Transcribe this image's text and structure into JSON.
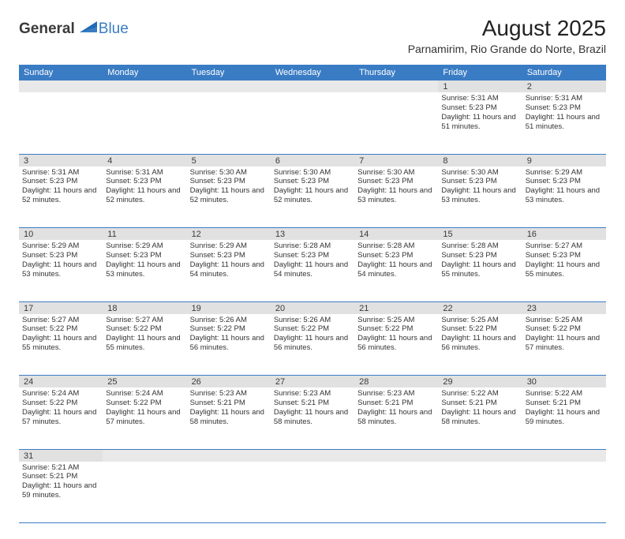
{
  "logo": {
    "textA": "General",
    "textB": "Blue"
  },
  "title": "August 2025",
  "location": "Parnamirim, Rio Grande do Norte, Brazil",
  "weekdays": [
    "Sunday",
    "Monday",
    "Tuesday",
    "Wednesday",
    "Thursday",
    "Friday",
    "Saturday"
  ],
  "style": {
    "header_bg": "#3a7cc4",
    "header_fg": "#ffffff",
    "daynum_bg": "#e1e1e1",
    "border_color": "#3a7cc4",
    "font_family": "Arial",
    "title_fontsize": 28,
    "cell_fontsize": 9.5
  },
  "weeks": [
    [
      null,
      null,
      null,
      null,
      null,
      {
        "n": "1",
        "sr": "Sunrise: 5:31 AM",
        "ss": "Sunset: 5:23 PM",
        "dl": "Daylight: 11 hours and 51 minutes."
      },
      {
        "n": "2",
        "sr": "Sunrise: 5:31 AM",
        "ss": "Sunset: 5:23 PM",
        "dl": "Daylight: 11 hours and 51 minutes."
      }
    ],
    [
      {
        "n": "3",
        "sr": "Sunrise: 5:31 AM",
        "ss": "Sunset: 5:23 PM",
        "dl": "Daylight: 11 hours and 52 minutes."
      },
      {
        "n": "4",
        "sr": "Sunrise: 5:31 AM",
        "ss": "Sunset: 5:23 PM",
        "dl": "Daylight: 11 hours and 52 minutes."
      },
      {
        "n": "5",
        "sr": "Sunrise: 5:30 AM",
        "ss": "Sunset: 5:23 PM",
        "dl": "Daylight: 11 hours and 52 minutes."
      },
      {
        "n": "6",
        "sr": "Sunrise: 5:30 AM",
        "ss": "Sunset: 5:23 PM",
        "dl": "Daylight: 11 hours and 52 minutes."
      },
      {
        "n": "7",
        "sr": "Sunrise: 5:30 AM",
        "ss": "Sunset: 5:23 PM",
        "dl": "Daylight: 11 hours and 53 minutes."
      },
      {
        "n": "8",
        "sr": "Sunrise: 5:30 AM",
        "ss": "Sunset: 5:23 PM",
        "dl": "Daylight: 11 hours and 53 minutes."
      },
      {
        "n": "9",
        "sr": "Sunrise: 5:29 AM",
        "ss": "Sunset: 5:23 PM",
        "dl": "Daylight: 11 hours and 53 minutes."
      }
    ],
    [
      {
        "n": "10",
        "sr": "Sunrise: 5:29 AM",
        "ss": "Sunset: 5:23 PM",
        "dl": "Daylight: 11 hours and 53 minutes."
      },
      {
        "n": "11",
        "sr": "Sunrise: 5:29 AM",
        "ss": "Sunset: 5:23 PM",
        "dl": "Daylight: 11 hours and 53 minutes."
      },
      {
        "n": "12",
        "sr": "Sunrise: 5:29 AM",
        "ss": "Sunset: 5:23 PM",
        "dl": "Daylight: 11 hours and 54 minutes."
      },
      {
        "n": "13",
        "sr": "Sunrise: 5:28 AM",
        "ss": "Sunset: 5:23 PM",
        "dl": "Daylight: 11 hours and 54 minutes."
      },
      {
        "n": "14",
        "sr": "Sunrise: 5:28 AM",
        "ss": "Sunset: 5:23 PM",
        "dl": "Daylight: 11 hours and 54 minutes."
      },
      {
        "n": "15",
        "sr": "Sunrise: 5:28 AM",
        "ss": "Sunset: 5:23 PM",
        "dl": "Daylight: 11 hours and 55 minutes."
      },
      {
        "n": "16",
        "sr": "Sunrise: 5:27 AM",
        "ss": "Sunset: 5:23 PM",
        "dl": "Daylight: 11 hours and 55 minutes."
      }
    ],
    [
      {
        "n": "17",
        "sr": "Sunrise: 5:27 AM",
        "ss": "Sunset: 5:22 PM",
        "dl": "Daylight: 11 hours and 55 minutes."
      },
      {
        "n": "18",
        "sr": "Sunrise: 5:27 AM",
        "ss": "Sunset: 5:22 PM",
        "dl": "Daylight: 11 hours and 55 minutes."
      },
      {
        "n": "19",
        "sr": "Sunrise: 5:26 AM",
        "ss": "Sunset: 5:22 PM",
        "dl": "Daylight: 11 hours and 56 minutes."
      },
      {
        "n": "20",
        "sr": "Sunrise: 5:26 AM",
        "ss": "Sunset: 5:22 PM",
        "dl": "Daylight: 11 hours and 56 minutes."
      },
      {
        "n": "21",
        "sr": "Sunrise: 5:25 AM",
        "ss": "Sunset: 5:22 PM",
        "dl": "Daylight: 11 hours and 56 minutes."
      },
      {
        "n": "22",
        "sr": "Sunrise: 5:25 AM",
        "ss": "Sunset: 5:22 PM",
        "dl": "Daylight: 11 hours and 56 minutes."
      },
      {
        "n": "23",
        "sr": "Sunrise: 5:25 AM",
        "ss": "Sunset: 5:22 PM",
        "dl": "Daylight: 11 hours and 57 minutes."
      }
    ],
    [
      {
        "n": "24",
        "sr": "Sunrise: 5:24 AM",
        "ss": "Sunset: 5:22 PM",
        "dl": "Daylight: 11 hours and 57 minutes."
      },
      {
        "n": "25",
        "sr": "Sunrise: 5:24 AM",
        "ss": "Sunset: 5:22 PM",
        "dl": "Daylight: 11 hours and 57 minutes."
      },
      {
        "n": "26",
        "sr": "Sunrise: 5:23 AM",
        "ss": "Sunset: 5:21 PM",
        "dl": "Daylight: 11 hours and 58 minutes."
      },
      {
        "n": "27",
        "sr": "Sunrise: 5:23 AM",
        "ss": "Sunset: 5:21 PM",
        "dl": "Daylight: 11 hours and 58 minutes."
      },
      {
        "n": "28",
        "sr": "Sunrise: 5:23 AM",
        "ss": "Sunset: 5:21 PM",
        "dl": "Daylight: 11 hours and 58 minutes."
      },
      {
        "n": "29",
        "sr": "Sunrise: 5:22 AM",
        "ss": "Sunset: 5:21 PM",
        "dl": "Daylight: 11 hours and 58 minutes."
      },
      {
        "n": "30",
        "sr": "Sunrise: 5:22 AM",
        "ss": "Sunset: 5:21 PM",
        "dl": "Daylight: 11 hours and 59 minutes."
      }
    ],
    [
      {
        "n": "31",
        "sr": "Sunrise: 5:21 AM",
        "ss": "Sunset: 5:21 PM",
        "dl": "Daylight: 11 hours and 59 minutes."
      },
      null,
      null,
      null,
      null,
      null,
      null
    ]
  ]
}
